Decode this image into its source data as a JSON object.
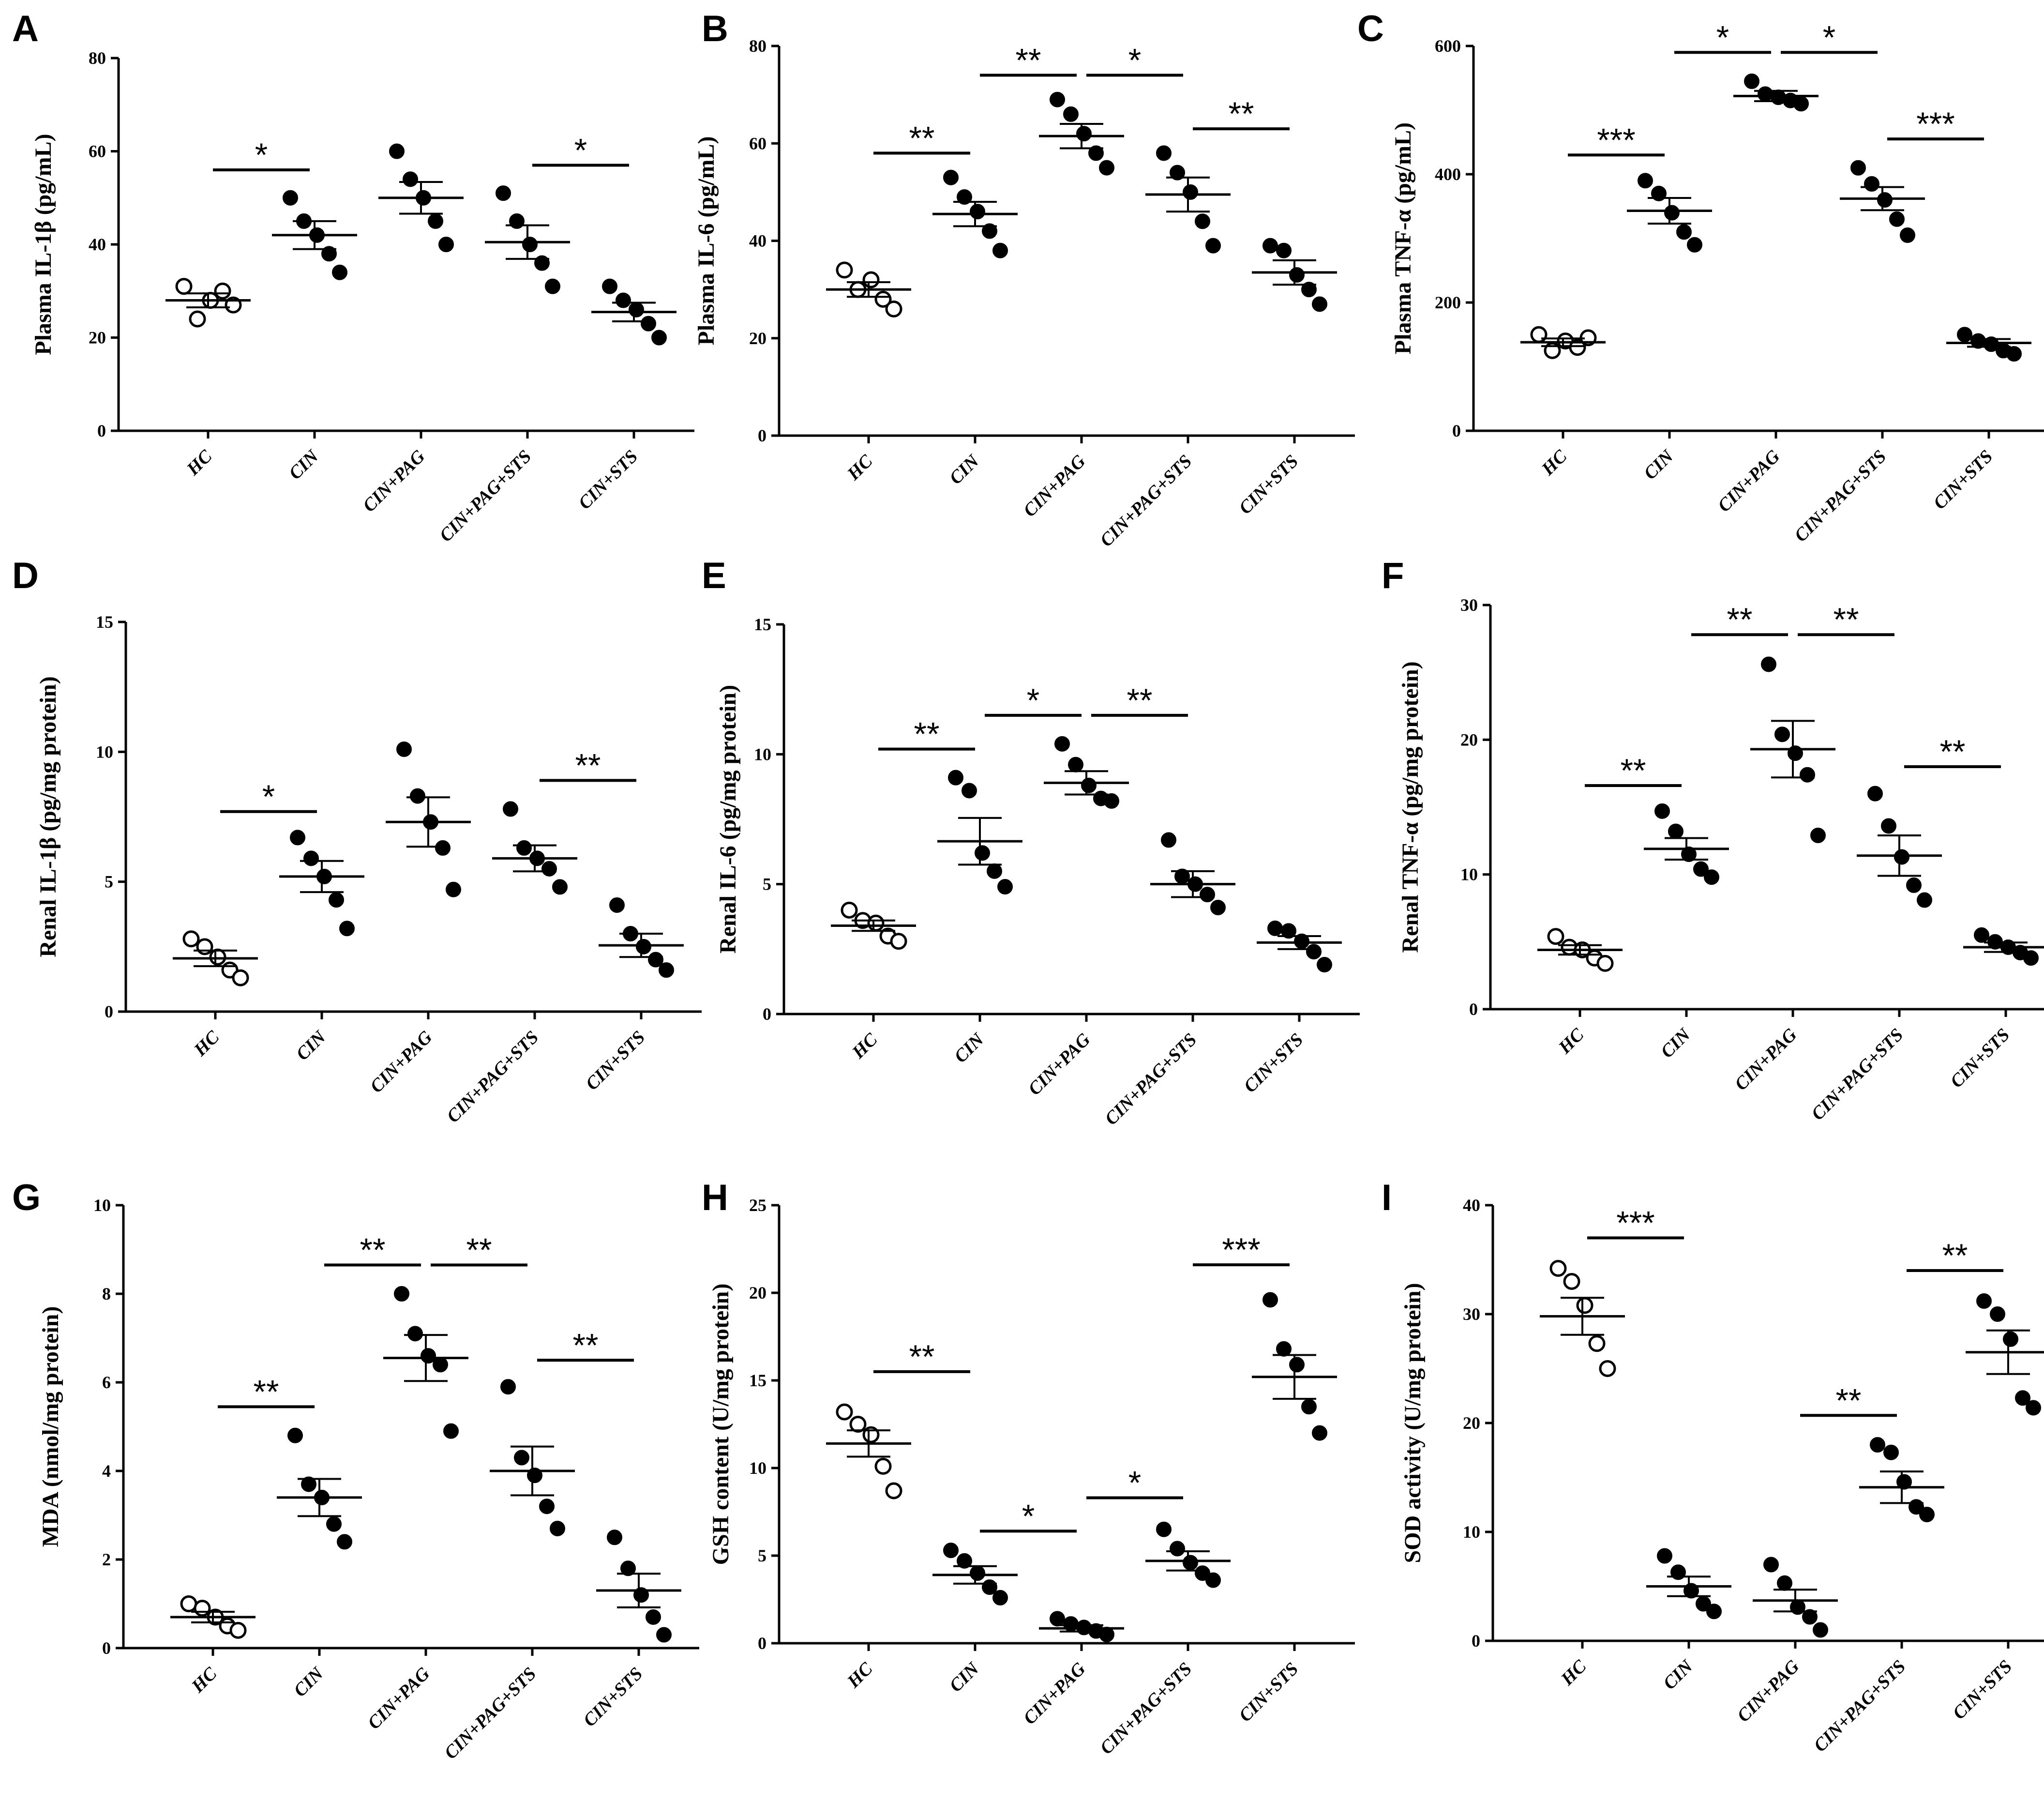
{
  "chart_data": [
    {
      "panel": "A",
      "type": "scatter",
      "ylabel": "Plasma IL-1β (pg/mL)",
      "ylim": [
        0,
        80
      ],
      "yticks": [
        "0",
        "20",
        "40",
        "60",
        "80"
      ],
      "categories": [
        "HC",
        "CIN",
        "CIN+PAG",
        "CIN+PAG+STS",
        "CIN+STS"
      ],
      "points": [
        [
          31,
          24,
          28,
          30,
          27
        ],
        [
          50,
          45,
          42,
          38,
          34
        ],
        [
          60,
          54,
          50,
          45,
          40
        ],
        [
          51,
          45,
          40,
          36,
          31
        ],
        [
          31,
          28,
          26,
          23,
          20
        ]
      ],
      "mean": [
        28,
        42,
        50,
        40.5,
        25.5
      ],
      "sem": [
        1.5,
        3,
        3.4,
        3.6,
        2
      ],
      "hollow": [
        true,
        false,
        false,
        false,
        false
      ],
      "significance": [
        {
          "from": 0,
          "to": 1,
          "label": "*",
          "y": 56
        },
        {
          "from": 3,
          "to": 4,
          "label": "*",
          "y": 57
        }
      ]
    },
    {
      "panel": "B",
      "type": "scatter",
      "ylabel": "Plasma IL-6 (pg/mL)",
      "ylim": [
        0,
        80
      ],
      "yticks": [
        "0",
        "20",
        "40",
        "60",
        "80"
      ],
      "categories": [
        "HC",
        "CIN",
        "CIN+PAG",
        "CIN+PAG+STS",
        "CIN+STS"
      ],
      "points": [
        [
          34,
          30,
          32,
          28,
          26
        ],
        [
          53,
          49,
          46,
          42,
          38
        ],
        [
          69,
          66,
          62,
          58,
          55
        ],
        [
          58,
          54,
          50,
          44,
          39
        ],
        [
          39,
          38,
          33,
          30,
          27
        ]
      ],
      "mean": [
        30,
        45.5,
        61.5,
        49.5,
        33.5
      ],
      "sem": [
        1.5,
        2.5,
        2.5,
        3.5,
        2.5
      ],
      "hollow": [
        true,
        false,
        false,
        false,
        false
      ],
      "significance": [
        {
          "from": 0,
          "to": 1,
          "label": "**",
          "y": 58
        },
        {
          "from": 1,
          "to": 2,
          "label": "**",
          "y": 74
        },
        {
          "from": 2,
          "to": 3,
          "label": "*",
          "y": 74
        },
        {
          "from": 3,
          "to": 4,
          "label": "**",
          "y": 63
        }
      ]
    },
    {
      "panel": "C",
      "type": "scatter",
      "ylabel": "Plasma TNF-α (pg/mL)",
      "ylim": [
        0,
        600
      ],
      "yticks": [
        "0",
        "200",
        "400",
        "600"
      ],
      "categories": [
        "HC",
        "CIN",
        "CIN+PAG",
        "CIN+PAG+STS",
        "CIN+STS"
      ],
      "points": [
        [
          150,
          125,
          140,
          130,
          145
        ],
        [
          390,
          370,
          340,
          310,
          290
        ],
        [
          545,
          525,
          520,
          515,
          510
        ],
        [
          410,
          385,
          360,
          330,
          305
        ],
        [
          150,
          140,
          135,
          125,
          120
        ]
      ],
      "mean": [
        138,
        343,
        522,
        362,
        137
      ],
      "sem": [
        6,
        20,
        8,
        18,
        6
      ],
      "hollow": [
        true,
        false,
        false,
        false,
        false
      ],
      "significance": [
        {
          "from": 0,
          "to": 1,
          "label": "***",
          "y": 430
        },
        {
          "from": 1,
          "to": 2,
          "label": "*",
          "y": 590
        },
        {
          "from": 2,
          "to": 3,
          "label": "*",
          "y": 590
        },
        {
          "from": 3,
          "to": 4,
          "label": "***",
          "y": 455
        }
      ]
    },
    {
      "panel": "D",
      "type": "scatter",
      "ylabel": "Renal IL-1β (pg/mg protein)",
      "ylim": [
        0,
        15
      ],
      "yticks": [
        "0",
        "5",
        "10",
        "15"
      ],
      "categories": [
        "HC",
        "CIN",
        "CIN+PAG",
        "CIN+PAG+STS",
        "CIN+STS"
      ],
      "points": [
        [
          2.8,
          2.5,
          2.1,
          1.6,
          1.3
        ],
        [
          6.7,
          5.9,
          5.2,
          4.3,
          3.2
        ],
        [
          10.1,
          8.3,
          7.3,
          6.3,
          4.7
        ],
        [
          7.8,
          6.3,
          5.9,
          5.5,
          4.8
        ],
        [
          4.1,
          3.0,
          2.5,
          2.0,
          1.6
        ]
      ],
      "mean": [
        2.05,
        5.2,
        7.3,
        5.9,
        2.55
      ],
      "sem": [
        0.3,
        0.6,
        0.95,
        0.5,
        0.45
      ],
      "hollow": [
        true,
        false,
        false,
        false,
        false
      ],
      "significance": [
        {
          "from": 0,
          "to": 1,
          "label": "*",
          "y": 7.7
        },
        {
          "from": 3,
          "to": 4,
          "label": "**",
          "y": 8.9
        }
      ]
    },
    {
      "panel": "E",
      "type": "scatter",
      "ylabel": "Renal IL-6 (pg/mg protein)",
      "ylim": [
        0,
        15
      ],
      "yticks": [
        "0",
        "5",
        "10",
        "15"
      ],
      "categories": [
        "HC",
        "CIN",
        "CIN+PAG",
        "CIN+PAG+STS",
        "CIN+STS"
      ],
      "points": [
        [
          4.0,
          3.6,
          3.5,
          3.0,
          2.8
        ],
        [
          9.1,
          8.6,
          6.2,
          5.5,
          4.9
        ],
        [
          10.4,
          9.6,
          8.8,
          8.3,
          8.2
        ],
        [
          6.7,
          5.3,
          5.0,
          4.6,
          4.1
        ],
        [
          3.3,
          3.2,
          2.8,
          2.4,
          1.9
        ]
      ],
      "mean": [
        3.4,
        6.65,
        8.9,
        5.0,
        2.75
      ],
      "sem": [
        0.2,
        0.9,
        0.45,
        0.5,
        0.25
      ],
      "hollow": [
        true,
        false,
        false,
        false,
        false
      ],
      "significance": [
        {
          "from": 0,
          "to": 1,
          "label": "**",
          "y": 10.2
        },
        {
          "from": 1,
          "to": 2,
          "label": "*",
          "y": 11.5
        },
        {
          "from": 2,
          "to": 3,
          "label": "**",
          "y": 11.5
        }
      ]
    },
    {
      "panel": "F",
      "type": "scatter",
      "ylabel": "Renal TNF-α (pg/mg protein)",
      "ylim": [
        0,
        30
      ],
      "yticks": [
        "0",
        "10",
        "20",
        "30"
      ],
      "categories": [
        "HC",
        "CIN",
        "CIN+PAG",
        "CIN+PAG+STS",
        "CIN+STS"
      ],
      "points": [
        [
          5.4,
          4.6,
          4.4,
          3.8,
          3.4
        ],
        [
          14.7,
          13.2,
          11.5,
          10.4,
          9.8
        ],
        [
          25.6,
          20.4,
          19.0,
          17.4,
          12.9
        ],
        [
          16.0,
          13.6,
          11.3,
          9.2,
          8.1
        ],
        [
          5.5,
          5.0,
          4.6,
          4.2,
          3.8
        ]
      ],
      "mean": [
        4.4,
        11.9,
        19.3,
        11.4,
        4.6
      ],
      "sem": [
        0.35,
        0.8,
        2.1,
        1.5,
        0.35
      ],
      "hollow": [
        true,
        false,
        false,
        false,
        false
      ],
      "significance": [
        {
          "from": 0,
          "to": 1,
          "label": "**",
          "y": 16.6
        },
        {
          "from": 1,
          "to": 2,
          "label": "**",
          "y": 27.8
        },
        {
          "from": 2,
          "to": 3,
          "label": "**",
          "y": 27.8
        },
        {
          "from": 3,
          "to": 4,
          "label": "**",
          "y": 18.0
        }
      ]
    },
    {
      "panel": "G",
      "type": "scatter",
      "ylabel": "MDA (nmol/mg protein)",
      "ylim": [
        0,
        10
      ],
      "yticks": [
        "0",
        "2",
        "4",
        "6",
        "8",
        "10"
      ],
      "categories": [
        "HC",
        "CIN",
        "CIN+PAG",
        "CIN+PAG+STS",
        "CIN+STS"
      ],
      "points": [
        [
          1.0,
          0.9,
          0.7,
          0.5,
          0.4
        ],
        [
          4.8,
          3.7,
          3.4,
          2.8,
          2.4
        ],
        [
          8.0,
          7.1,
          6.6,
          6.4,
          4.9
        ],
        [
          5.9,
          4.3,
          3.9,
          3.2,
          2.7
        ],
        [
          2.5,
          1.8,
          1.2,
          0.7,
          0.3
        ]
      ],
      "mean": [
        0.7,
        3.4,
        6.55,
        4.0,
        1.3
      ],
      "sem": [
        0.12,
        0.42,
        0.52,
        0.55,
        0.38
      ],
      "hollow": [
        true,
        false,
        false,
        false,
        false
      ],
      "significance": [
        {
          "from": 0,
          "to": 1,
          "label": "**",
          "y": 5.45
        },
        {
          "from": 1,
          "to": 2,
          "label": "**",
          "y": 8.65
        },
        {
          "from": 2,
          "to": 3,
          "label": "**",
          "y": 8.65
        },
        {
          "from": 3,
          "to": 4,
          "label": "**",
          "y": 6.5
        }
      ]
    },
    {
      "panel": "H",
      "type": "scatter",
      "ylabel": "GSH content (U/mg protein)",
      "ylim": [
        0,
        25
      ],
      "yticks": [
        "0",
        "5",
        "10",
        "15",
        "20",
        "25"
      ],
      "categories": [
        "HC",
        "CIN",
        "CIN+PAG",
        "CIN+PAG+STS",
        "CIN+STS"
      ],
      "points": [
        [
          13.2,
          12.5,
          11.9,
          10.1,
          8.7
        ],
        [
          5.3,
          4.7,
          4.0,
          3.2,
          2.6
        ],
        [
          1.4,
          1.1,
          0.9,
          0.7,
          0.5
        ],
        [
          6.5,
          5.4,
          4.6,
          4.0,
          3.6
        ],
        [
          19.6,
          16.8,
          15.9,
          13.5,
          12.0
        ]
      ],
      "mean": [
        11.4,
        3.9,
        0.85,
        4.7,
        15.2
      ],
      "sem": [
        0.75,
        0.5,
        0.18,
        0.55,
        1.25
      ],
      "hollow": [
        true,
        false,
        false,
        false,
        false
      ],
      "significance": [
        {
          "from": 0,
          "to": 1,
          "label": "**",
          "y": 15.5
        },
        {
          "from": 1,
          "to": 2,
          "label": "*",
          "y": 6.4
        },
        {
          "from": 2,
          "to": 3,
          "label": "*",
          "y": 8.3
        },
        {
          "from": 3,
          "to": 4,
          "label": "***",
          "y": 21.6
        }
      ]
    },
    {
      "panel": "I",
      "type": "scatter",
      "ylabel": "SOD activity (U/mg protein)",
      "ylim": [
        0,
        40
      ],
      "yticks": [
        "0",
        "10",
        "20",
        "30",
        "40"
      ],
      "categories": [
        "HC",
        "CIN",
        "CIN+PAG",
        "CIN+PAG+STS",
        "CIN+STS"
      ],
      "points": [
        [
          34.2,
          33.0,
          30.8,
          27.3,
          25.0
        ],
        [
          7.8,
          6.3,
          4.6,
          3.4,
          2.7
        ],
        [
          7.0,
          5.3,
          3.1,
          2.2,
          1.0
        ],
        [
          18.0,
          17.3,
          14.6,
          12.3,
          11.6
        ],
        [
          31.2,
          30.0,
          27.7,
          22.3,
          21.4
        ]
      ],
      "mean": [
        29.8,
        5.0,
        3.7,
        14.1,
        26.5
      ],
      "sem": [
        1.7,
        0.9,
        1.0,
        1.45,
        2.0
      ],
      "hollow": [
        true,
        false,
        false,
        false,
        false
      ],
      "significance": [
        {
          "from": 0,
          "to": 1,
          "label": "***",
          "y": 37.0
        },
        {
          "from": 2,
          "to": 3,
          "label": "**",
          "y": 20.7
        },
        {
          "from": 3,
          "to": 4,
          "label": "**",
          "y": 34.0
        }
      ]
    }
  ]
}
